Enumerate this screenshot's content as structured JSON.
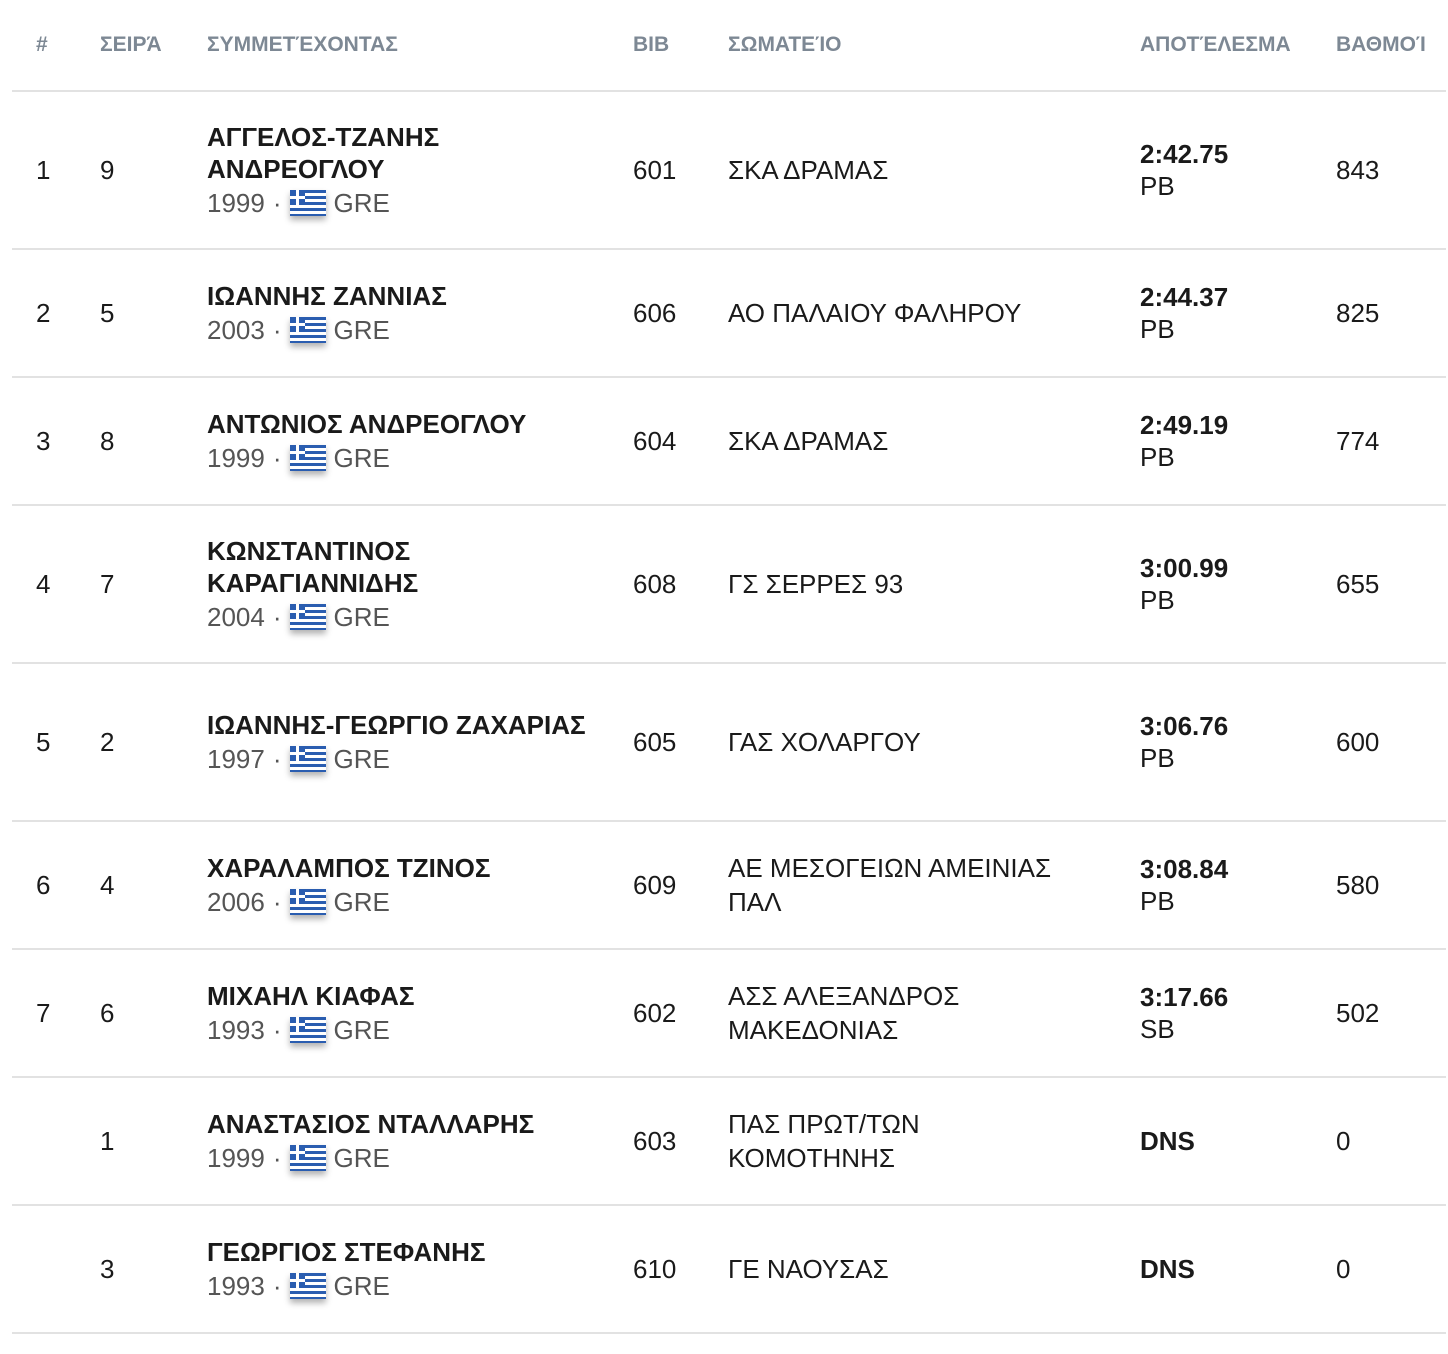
{
  "headers": [
    "#",
    "ΣΕΙΡΆ",
    "ΣΥΜΜΕΤΈΧΟΝΤΑΣ",
    "BIB",
    "ΣΩΜΑΤΕΊΟ",
    "ΑΠΟΤΈΛΕΣΜΑ",
    "ΒΑΘΜΟΊ"
  ],
  "rows": [
    {
      "rank": "1",
      "lane": "9",
      "name": "ΑΓΓΕΛΟΣ-ΤΖΑΝΗΣ ΑΝΔΡΕΟΓΛΟΥ",
      "year": "1999",
      "country": "GRE",
      "bib": "601",
      "club": "ΣΚΑ ΔΡΑΜΑΣ",
      "result": "2:42.75",
      "note": "PB",
      "points": "843"
    },
    {
      "rank": "2",
      "lane": "5",
      "name": "ΙΩΑΝΝΗΣ ΖΑΝΝΙΑΣ",
      "year": "2003",
      "country": "GRE",
      "bib": "606",
      "club": "ΑΟ ΠΑΛΑΙΟΥ ΦΑΛΗΡΟΥ",
      "result": "2:44.37",
      "note": "PB",
      "points": "825"
    },
    {
      "rank": "3",
      "lane": "8",
      "name": "ΑΝΤΩΝΙΟΣ ΑΝΔΡΕΟΓΛΟΥ",
      "year": "1999",
      "country": "GRE",
      "bib": "604",
      "club": "ΣΚΑ ΔΡΑΜΑΣ",
      "result": "2:49.19",
      "note": "PB",
      "points": "774"
    },
    {
      "rank": "4",
      "lane": "7",
      "name": "ΚΩΝΣΤΑΝΤΙΝΟΣ ΚΑΡΑΓΙΑΝΝΙΔΗΣ",
      "year": "2004",
      "country": "GRE",
      "bib": "608",
      "club": "ΓΣ ΣΕΡΡΕΣ 93",
      "result": "3:00.99",
      "note": "PB",
      "points": "655"
    },
    {
      "rank": "5",
      "lane": "2",
      "name": "ΙΩΑΝΝΗΣ-ΓΕΩΡΓΙΟ ΖΑΧΑΡΙΑΣ",
      "year": "1997",
      "country": "GRE",
      "bib": "605",
      "club": "ΓΑΣ ΧΟΛΑΡΓΟΥ",
      "result": "3:06.76",
      "note": "PB",
      "points": "600"
    },
    {
      "rank": "6",
      "lane": "4",
      "name": "ΧΑΡΑΛΑΜΠΟΣ ΤΖΙΝΟΣ",
      "year": "2006",
      "country": "GRE",
      "bib": "609",
      "club": "ΑΕ ΜΕΣΟΓΕΙΩΝ ΑΜΕΙΝΙΑΣ ΠΑΛ",
      "result": "3:08.84",
      "note": "PB",
      "points": "580"
    },
    {
      "rank": "7",
      "lane": "6",
      "name": "ΜΙΧΑΗΛ ΚΙΑΦΑΣ",
      "year": "1993",
      "country": "GRE",
      "bib": "602",
      "club": "ΑΣΣ ΑΛΕΞΑΝΔΡΟΣ ΜΑΚΕΔΟΝΙΑΣ",
      "result": "3:17.66",
      "note": "SB",
      "points": "502"
    },
    {
      "rank": "",
      "lane": "1",
      "name": "ΑΝΑΣΤΑΣΙΟΣ ΝΤΑΛΛΑΡΗΣ",
      "year": "1999",
      "country": "GRE",
      "bib": "603",
      "club": "ΠΑΣ ΠΡΩΤ/ΤΩΝ ΚΟΜΟΤΗΝΗΣ",
      "result": "DNS",
      "note": "",
      "points": "0"
    },
    {
      "rank": "",
      "lane": "3",
      "name": "ΓΕΩΡΓΙΟΣ ΣΤΕΦΑΝΗΣ",
      "year": "1993",
      "country": "GRE",
      "bib": "610",
      "club": "ΓΕ ΝΑΟΥΣΑΣ",
      "result": "DNS",
      "note": "",
      "points": "0"
    }
  ]
}
